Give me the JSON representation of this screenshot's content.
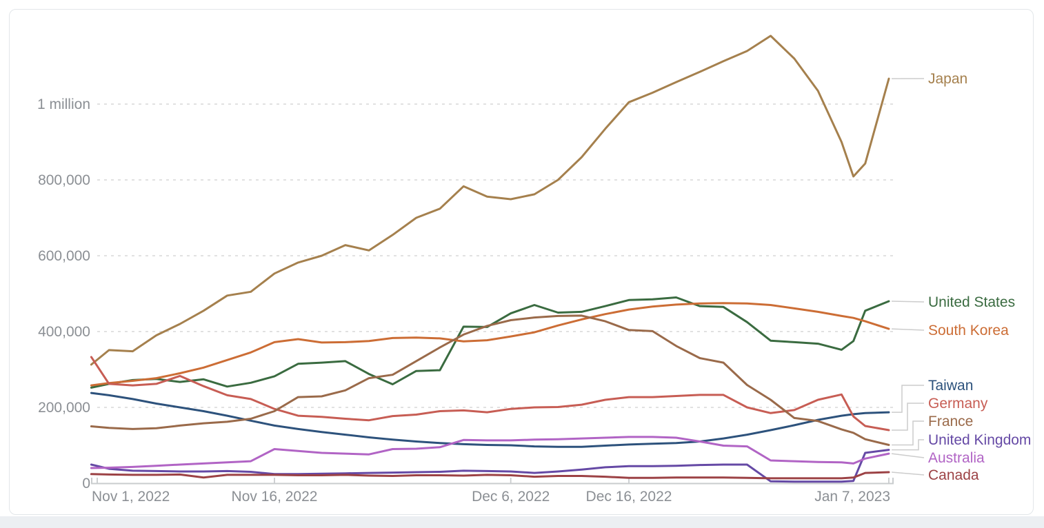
{
  "page": {
    "footer_strip_color": "#eceff2",
    "card_border_color": "#e2e6e9",
    "card_background": "#ffffff"
  },
  "chart_data": {
    "type": "line",
    "title": "",
    "grid": "horizontal-dashed",
    "legend_position": "right-of-lines",
    "xlim_days": [
      0,
      68
    ],
    "ylim": [
      0,
      1200000
    ],
    "x_axis": {
      "ticks": [
        {
          "day": 1,
          "label": "Nov 1, 2022",
          "align": "start"
        },
        {
          "day": 16,
          "label": "Nov 16, 2022",
          "align": "middle"
        },
        {
          "day": 36,
          "label": "Dec 6, 2022",
          "align": "middle"
        },
        {
          "day": 46,
          "label": "Dec 16, 2022",
          "align": "middle"
        },
        {
          "day": 68,
          "label": "Jan 7, 2023",
          "align": "end"
        }
      ]
    },
    "y_axis": {
      "ticks": [
        {
          "value": 0,
          "label": "0"
        },
        {
          "value": 200000,
          "label": "200,000"
        },
        {
          "value": 400000,
          "label": "400,000"
        },
        {
          "value": 600000,
          "label": "600,000"
        },
        {
          "value": 800000,
          "label": "800,000"
        },
        {
          "value": 1000000,
          "label": "1 million"
        }
      ]
    },
    "days": [
      0.5,
      2,
      4,
      6,
      8,
      10,
      12,
      14,
      16,
      18,
      20,
      22,
      24,
      26,
      28,
      30,
      32,
      34,
      36,
      38,
      40,
      42,
      44,
      46,
      48,
      50,
      52,
      54,
      56,
      58,
      60,
      62,
      64,
      65,
      66,
      68
    ],
    "day_zero_date": "Oct 31, 2022",
    "series": [
      {
        "name": "Japan",
        "color": "#a5804d",
        "values": [
          313000,
          351000,
          348000,
          390000,
          420000,
          455000,
          495000,
          505000,
          553000,
          582000,
          600000,
          628000,
          614000,
          655000,
          700000,
          724000,
          783000,
          756000,
          749000,
          762000,
          800000,
          860000,
          935000,
          1005000,
          1030000,
          1058000,
          1085000,
          1113000,
          1140000,
          1180000,
          1120000,
          1035000,
          900000,
          809000,
          843000,
          1067000
        ]
      },
      {
        "name": "United States",
        "color": "#3a6b40",
        "values": [
          252000,
          262000,
          272000,
          275000,
          267000,
          274000,
          255000,
          265000,
          282000,
          315000,
          318000,
          322000,
          288000,
          261000,
          296000,
          298000,
          413000,
          412000,
          448000,
          470000,
          450000,
          452000,
          467000,
          483000,
          485000,
          490000,
          467000,
          465000,
          425000,
          376000,
          372000,
          368000,
          352000,
          375000,
          455000,
          480000
        ]
      },
      {
        "name": "South Korea",
        "color": "#cc6d35",
        "values": [
          258000,
          264000,
          270000,
          277000,
          290000,
          305000,
          325000,
          345000,
          372000,
          380000,
          371000,
          372000,
          375000,
          383000,
          384000,
          382000,
          374000,
          377000,
          387000,
          398000,
          416000,
          432000,
          446000,
          458000,
          466000,
          471000,
          474000,
          475000,
          474000,
          470000,
          461000,
          452000,
          441000,
          436000,
          427000,
          407000
        ]
      },
      {
        "name": "Taiwan",
        "color": "#2d527c",
        "values": [
          238000,
          232000,
          222000,
          210000,
          200000,
          190000,
          178000,
          165000,
          152000,
          143000,
          135000,
          128000,
          121000,
          115000,
          110000,
          106000,
          103000,
          101000,
          100000,
          97000,
          96000,
          96000,
          99000,
          102000,
          104000,
          106000,
          110000,
          118000,
          128000,
          140000,
          153000,
          167000,
          178000,
          182000,
          185000,
          187000
        ]
      },
      {
        "name": "Germany",
        "color": "#c75d54",
        "values": [
          333000,
          262000,
          258000,
          262000,
          283000,
          256000,
          232000,
          222000,
          196000,
          178000,
          175000,
          170000,
          166000,
          177000,
          181000,
          190000,
          192000,
          187000,
          196000,
          200000,
          201000,
          207000,
          220000,
          227000,
          227000,
          230000,
          233000,
          233000,
          200000,
          185000,
          193000,
          220000,
          234000,
          176000,
          151000,
          140000
        ]
      },
      {
        "name": "France",
        "color": "#9a6a4a",
        "values": [
          150000,
          146000,
          143000,
          145000,
          152000,
          158000,
          162000,
          170000,
          190000,
          227000,
          229000,
          245000,
          277000,
          286000,
          322000,
          358000,
          392000,
          415000,
          430000,
          437000,
          441000,
          442000,
          427000,
          404000,
          401000,
          362000,
          330000,
          318000,
          259000,
          220000,
          172000,
          164000,
          142000,
          133000,
          116000,
          101000
        ]
      },
      {
        "name": "United Kingdom",
        "color": "#6549a5",
        "values": [
          49000,
          38000,
          33000,
          32000,
          31000,
          31000,
          32000,
          30000,
          24000,
          24000,
          25000,
          26000,
          27000,
          28000,
          29000,
          30000,
          33000,
          32000,
          31000,
          27000,
          31000,
          36000,
          42000,
          45000,
          45000,
          46000,
          48000,
          49000,
          49000,
          5000,
          4000,
          4000,
          4000,
          6000,
          80000,
          88000
        ]
      },
      {
        "name": "Australia",
        "color": "#b164c5",
        "values": [
          40000,
          41000,
          43000,
          46000,
          49000,
          52000,
          55000,
          58000,
          90000,
          85000,
          80000,
          78000,
          76000,
          90000,
          91000,
          95000,
          114000,
          113000,
          113000,
          115000,
          116000,
          118000,
          120000,
          122000,
          122000,
          120000,
          110000,
          99000,
          97000,
          60000,
          58000,
          56000,
          55000,
          52000,
          65000,
          78000
        ]
      },
      {
        "name": "Canada",
        "color": "#9c4245",
        "values": [
          24000,
          23000,
          22000,
          22000,
          23000,
          15000,
          22000,
          22000,
          22000,
          21000,
          21000,
          22000,
          20000,
          19000,
          21000,
          21000,
          20000,
          22000,
          21000,
          17000,
          19000,
          19000,
          17000,
          14000,
          14000,
          15000,
          15000,
          15000,
          14000,
          13000,
          13000,
          13000,
          13000,
          15000,
          27000,
          29000
        ]
      }
    ]
  }
}
